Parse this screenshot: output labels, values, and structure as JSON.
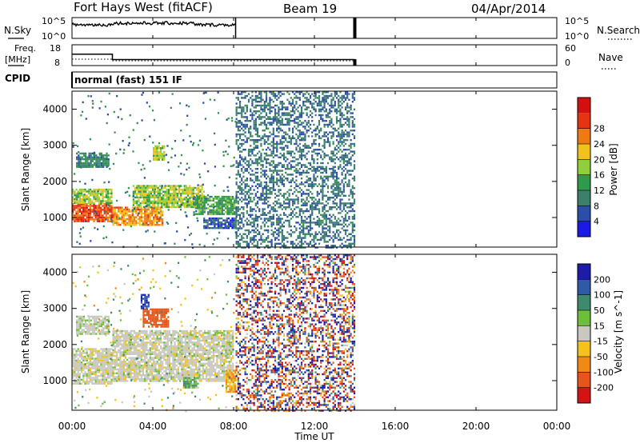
{
  "header": {
    "title": "Fort Hays West (fitACF)",
    "beam": "Beam 19",
    "date": "04/Apr/2014"
  },
  "sky_panel": {
    "left_label": "N.Sky",
    "left_top": "10^5",
    "left_bottom": "10^0",
    "right_top": "10^5",
    "right_bottom": "10^0",
    "right_label": "N.Search"
  },
  "freq_panel": {
    "left_label_1": "Freq.",
    "left_label_2": "[MHz]",
    "left_top": "18",
    "left_bottom": "8",
    "right_top": "60",
    "right_bottom": "0",
    "right_label": "Nave"
  },
  "cpid": {
    "label": "CPID",
    "value": "normal (fast) 151 IF"
  },
  "power_panel": {
    "ylabel": "Slant Range [km]",
    "yticks": [
      "1000",
      "2000",
      "3000",
      "4000"
    ],
    "cbar_label": "Power [dB]",
    "cbar_ticks": [
      "4",
      "8",
      "12",
      "16",
      "20",
      "24",
      "28"
    ],
    "colors": [
      "#1a1ae6",
      "#2b4ea8",
      "#3c7f6a",
      "#2f9a4a",
      "#8fcf3a",
      "#f2c21a",
      "#f07a12",
      "#e63312",
      "#d40f0f"
    ]
  },
  "velocity_panel": {
    "ylabel": "Slant Range [km]",
    "yticks": [
      "1000",
      "2000",
      "3000",
      "4000"
    ],
    "cbar_label": "Velocity [m s^-1]",
    "cbar_ticks": [
      "200",
      "100",
      "50",
      "15",
      "-15",
      "-50",
      "-100",
      "-200"
    ],
    "colors": [
      "#1c1ca8",
      "#2e5aa8",
      "#3e8a6e",
      "#6dbe3a",
      "#c8c8c0",
      "#f4c21a",
      "#f08a14",
      "#e6551a",
      "#d41414"
    ]
  },
  "xaxis": {
    "label": "Time UT",
    "ticks": [
      "00:00",
      "04:00",
      "08:00",
      "12:00",
      "16:00",
      "20:00",
      "00:00"
    ]
  },
  "chart_data": {
    "type": "heatmap",
    "title": "Fort Hays West (fitACF)",
    "subtitle": "Beam 19",
    "x_range_hours": [
      0,
      24
    ],
    "y_range_km": [
      180,
      4500
    ],
    "xlabel": "Time UT",
    "ylabel": "Slant Range [km]",
    "power_range_db": [
      0,
      32
    ],
    "velocity_range": [
      -250,
      250
    ],
    "freq_mhz": [
      {
        "t": 0,
        "v": 13.5
      },
      {
        "t": 2,
        "v": 10.9
      },
      {
        "t": 14,
        "v": 10.9
      }
    ],
    "noise_interval_hours": [
      8.1,
      14.0
    ],
    "gap_after_hours": 14.0,
    "power_regions": [
      {
        "t0": 0.0,
        "t1": 2.0,
        "r0": 900,
        "r1": 1400,
        "level": 26
      },
      {
        "t0": 0.0,
        "t1": 2.0,
        "r0": 1400,
        "r1": 1800,
        "level": 16
      },
      {
        "t0": 0.2,
        "t1": 1.8,
        "r0": 2400,
        "r1": 2800,
        "level": 10
      },
      {
        "t0": 2.0,
        "t1": 4.5,
        "r0": 800,
        "r1": 1300,
        "level": 22
      },
      {
        "t0": 3.0,
        "t1": 6.5,
        "r0": 1300,
        "r1": 1900,
        "level": 16
      },
      {
        "t0": 4.0,
        "t1": 4.6,
        "r0": 2600,
        "r1": 3000,
        "level": 16
      },
      {
        "t0": 6.0,
        "t1": 8.1,
        "r0": 1100,
        "r1": 1600,
        "level": 12
      },
      {
        "t0": 6.5,
        "t1": 8.1,
        "r0": 700,
        "r1": 1000,
        "level": 6
      }
    ],
    "velocity_regions": [
      {
        "t0": 0.0,
        "t1": 2.0,
        "r0": 900,
        "r1": 1900,
        "v": 0
      },
      {
        "t0": 0.2,
        "t1": 1.8,
        "r0": 2300,
        "r1": 2800,
        "v": 5
      },
      {
        "t0": 2.0,
        "t1": 8.0,
        "r0": 1000,
        "r1": 2400,
        "v": 0
      },
      {
        "t0": 3.5,
        "t1": 4.8,
        "r0": 2500,
        "r1": 3000,
        "v": -120
      },
      {
        "t0": 3.4,
        "t1": 3.8,
        "r0": 3000,
        "r1": 3400,
        "v": 150
      },
      {
        "t0": 5.5,
        "t1": 6.2,
        "r0": 800,
        "r1": 1100,
        "v": 30
      },
      {
        "t0": 7.6,
        "t1": 8.1,
        "r0": 700,
        "r1": 1300,
        "v": -60
      }
    ]
  }
}
